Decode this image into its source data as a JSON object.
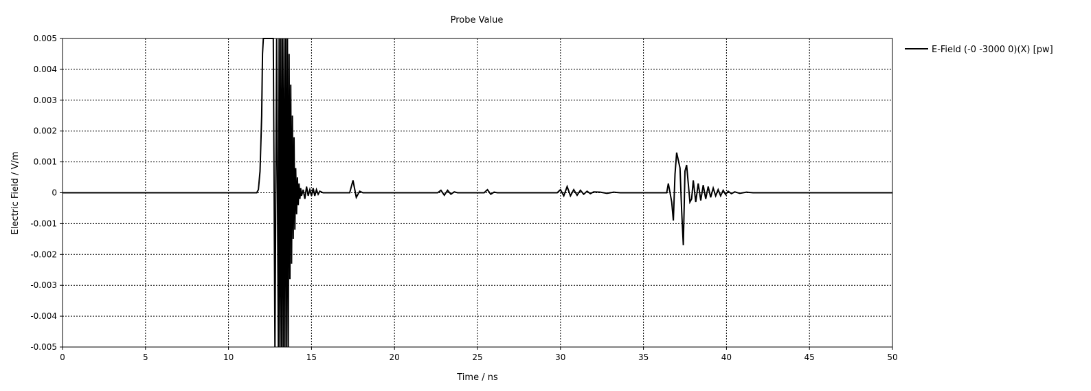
{
  "chart_data": {
    "type": "line",
    "title": "Probe Value",
    "xlabel": "Time / ns",
    "ylabel": "Electric Field / V/m",
    "xlim": [
      0,
      50
    ],
    "ylim": [
      -0.005,
      0.005
    ],
    "x_ticks": [
      0,
      5,
      10,
      15,
      20,
      25,
      30,
      35,
      40,
      45,
      50
    ],
    "x_tick_labels": [
      "0",
      "5",
      "10",
      "15",
      "20",
      "25",
      "30",
      "35",
      "40",
      "45",
      "50"
    ],
    "y_ticks": [
      0.005,
      0.004,
      0.003,
      0.002,
      0.001,
      0,
      -0.001,
      -0.002,
      -0.003,
      -0.004,
      -0.005
    ],
    "y_tick_labels": [
      "0.005",
      "0.004",
      "0.003",
      "0.002",
      "0.001",
      "0",
      "-0.001",
      "-0.002",
      "-0.003",
      "-0.004",
      "-0.005"
    ],
    "grid": true,
    "legend_position": "top-right, outside plot",
    "series": [
      {
        "name": "E-Field (-0 -3000 0)(X) [pw]",
        "color": "#000000",
        "x": [
          0,
          11.7,
          11.8,
          11.9,
          12.0,
          12.05,
          12.1,
          12.15,
          12.3,
          12.5,
          12.7,
          12.8,
          12.9,
          13.0,
          13.05,
          13.1,
          13.15,
          13.2,
          13.25,
          13.3,
          13.35,
          13.4,
          13.45,
          13.5,
          13.55,
          13.6,
          13.65,
          13.7,
          13.75,
          13.8,
          13.85,
          13.9,
          13.95,
          14.0,
          14.05,
          14.1,
          14.15,
          14.2,
          14.25,
          14.3,
          14.35,
          14.4,
          14.5,
          14.6,
          14.7,
          14.8,
          14.9,
          15.0,
          15.1,
          15.2,
          15.3,
          15.4,
          15.5,
          15.7,
          16.0,
          16.5,
          17.0,
          17.3,
          17.5,
          17.7,
          17.9,
          18.1,
          18.4,
          22.6,
          22.8,
          23.0,
          23.2,
          23.4,
          23.6,
          23.8,
          25.4,
          25.6,
          25.8,
          26.0,
          26.2,
          26.5,
          29.5,
          29.8,
          30.0,
          30.2,
          30.4,
          30.6,
          30.8,
          31.0,
          31.2,
          31.4,
          31.6,
          31.8,
          32.0,
          32.4,
          32.8,
          33.2,
          33.6,
          36.2,
          36.4,
          36.5,
          36.7,
          36.8,
          36.9,
          37.0,
          37.2,
          37.3,
          37.4,
          37.5,
          37.6,
          37.8,
          37.9,
          38.0,
          38.15,
          38.3,
          38.45,
          38.6,
          38.75,
          38.9,
          39.05,
          39.2,
          39.35,
          39.5,
          39.65,
          39.8,
          39.95,
          40.1,
          40.3,
          40.5,
          40.8,
          41.2,
          41.6,
          41.9,
          42.0,
          50
        ],
        "y": [
          0,
          0,
          0.0001,
          0.0007,
          0.0025,
          0.0045,
          0.005,
          0.005,
          0.005,
          0.005,
          0.005,
          -0.005,
          0.005,
          -0.005,
          0.005,
          -0.005,
          0.005,
          -0.005,
          0.005,
          -0.005,
          0.005,
          -0.005,
          0.005,
          -0.005,
          0.005,
          -0.005,
          0.0045,
          -0.0028,
          0.0035,
          -0.0023,
          0.0025,
          -0.0015,
          0.0018,
          -0.0012,
          0.0008,
          -0.0007,
          0.0005,
          -0.0004,
          0.0003,
          -0.0002,
          0.00015,
          -0.0001,
          0.0001,
          -0.0002,
          0.0002,
          -0.0001,
          0.0001,
          -0.0001,
          0.00015,
          -0.0001,
          0.0001,
          -5e-05,
          5e-05,
          0,
          0,
          0,
          0,
          0,
          0.0004,
          -0.00015,
          5e-05,
          0,
          0,
          0,
          8e-05,
          -8e-05,
          8e-05,
          -5e-05,
          3e-05,
          0,
          0,
          0.0001,
          -5e-05,
          2e-05,
          0,
          0,
          0,
          0,
          0.0001,
          -0.0001,
          0.0002,
          -0.0001,
          0.0001,
          -8e-05,
          8e-05,
          -5e-05,
          5e-05,
          -3e-05,
          3e-05,
          2e-05,
          -2e-05,
          2e-05,
          0,
          0,
          0,
          0.0003,
          -0.0003,
          -0.0009,
          0.0006,
          0.0013,
          0.0008,
          -0.0006,
          -0.0017,
          0.0007,
          0.0009,
          -0.0003,
          -0.0002,
          0.0004,
          -0.0003,
          0.0003,
          -0.00025,
          0.00025,
          -0.0002,
          0.0002,
          -0.00015,
          0.00015,
          -0.0001,
          0.0001,
          -0.0001,
          8e-05,
          -6e-05,
          5e-05,
          -3e-05,
          3e-05,
          -2e-05,
          2e-05,
          0,
          0,
          0,
          0
        ]
      }
    ]
  }
}
